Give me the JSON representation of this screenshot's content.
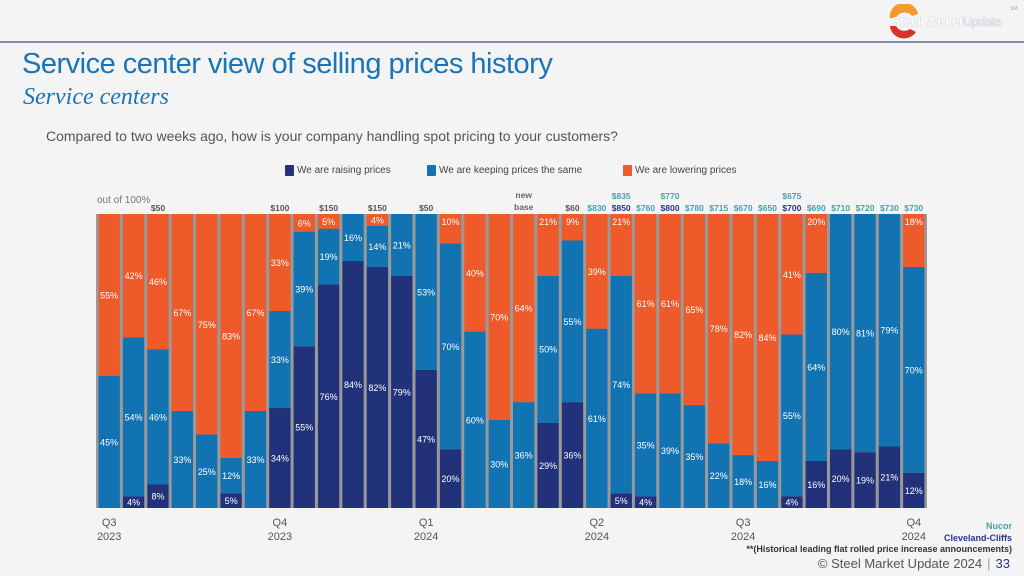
{
  "header": {
    "logo_bold": "Steel Market",
    "logo_light": "Update",
    "logo_sup": "SM"
  },
  "title": "Service center view of selling prices history",
  "subtitle": "Service centers",
  "question": "Compared to two weeks ago, how is your company handling spot pricing to your customers?",
  "colors": {
    "raising": "#22327a",
    "same": "#1273b2",
    "lowering": "#ef5a2b",
    "nucor": "#4aa0a8",
    "cliffs": "#27378a"
  },
  "footer": {
    "nucor_label": "Nucor",
    "cliffs_label": "Cleveland-Cliffs",
    "historical_note": "**(Historical leading flat rolled price increase announcements)",
    "copyright": "© Steel Market Update 2024",
    "page_number": "33"
  },
  "chart_data": {
    "type": "bar",
    "stacked": true,
    "normalized": true,
    "title": "Service center view of selling prices history",
    "ylabel": "out of 100%",
    "ylim": [
      0,
      100
    ],
    "grid": false,
    "legend_position": "top-center",
    "legend": [
      "We are raising prices",
      "We are keeping prices the same",
      "We are lowering prices"
    ],
    "quarter_labels": [
      {
        "column": 0,
        "line1": "Q3",
        "line2": "2023"
      },
      {
        "column": 7,
        "line1": "Q4",
        "line2": "2023"
      },
      {
        "column": 13,
        "line1": "Q1",
        "line2": "2024"
      },
      {
        "column": 20,
        "line1": "Q2",
        "line2": "2024"
      },
      {
        "column": 26,
        "line1": "Q3",
        "line2": "2024"
      },
      {
        "column": 33,
        "line1": "Q4",
        "line2": "2024"
      }
    ],
    "series": [
      {
        "name": "We are raising prices",
        "key": "raising",
        "values": [
          0,
          4,
          8,
          0,
          0,
          5,
          0,
          34,
          55,
          76,
          84,
          82,
          79,
          47,
          20,
          0,
          0,
          0,
          29,
          36,
          0,
          5,
          4,
          0,
          0,
          0,
          0,
          0,
          4,
          16,
          20,
          19,
          21,
          12
        ]
      },
      {
        "name": "We are keeping prices the same",
        "key": "same",
        "values": [
          45,
          54,
          46,
          33,
          25,
          12,
          33,
          33,
          39,
          19,
          16,
          14,
          21,
          53,
          70,
          60,
          30,
          36,
          50,
          55,
          61,
          74,
          35,
          39,
          35,
          22,
          18,
          16,
          55,
          64,
          80,
          81,
          79,
          70
        ]
      },
      {
        "name": "We are lowering prices",
        "key": "lowering",
        "values": [
          55,
          42,
          46,
          67,
          75,
          83,
          67,
          33,
          6,
          5,
          0,
          4,
          0,
          0,
          10,
          40,
          70,
          64,
          21,
          9,
          39,
          21,
          61,
          61,
          65,
          78,
          82,
          84,
          41,
          20,
          0,
          0,
          0,
          18
        ]
      }
    ],
    "price_annotations": [
      {
        "column": 2,
        "nucor": "$50"
      },
      {
        "column": 7,
        "nucor": "$100"
      },
      {
        "column": 9,
        "nucor": "$150"
      },
      {
        "column": 11,
        "nucor": "$150"
      },
      {
        "column": 13,
        "nucor": "$50"
      },
      {
        "column": 17,
        "nucor": "new base"
      },
      {
        "column": 19,
        "nucor": "$60"
      },
      {
        "column": 20,
        "nucor": "$830"
      },
      {
        "column": 21,
        "nucor": "$835",
        "cliffs": "$850"
      },
      {
        "column": 22,
        "nucor": "$760"
      },
      {
        "column": 23,
        "nucor": "$770",
        "cliffs": "$800"
      },
      {
        "column": 24,
        "nucor": "$780"
      },
      {
        "column": 25,
        "nucor": "$715"
      },
      {
        "column": 26,
        "nucor": "$670"
      },
      {
        "column": 27,
        "nucor": "$650"
      },
      {
        "column": 28,
        "nucor": "$675",
        "cliffs": "$700"
      },
      {
        "column": 29,
        "nucor": "$690"
      },
      {
        "column": 30,
        "nucor": "$710"
      },
      {
        "column": 31,
        "nucor": "$720"
      },
      {
        "column": 32,
        "nucor": "$730"
      },
      {
        "column": 33,
        "nucor": "$730"
      }
    ]
  }
}
